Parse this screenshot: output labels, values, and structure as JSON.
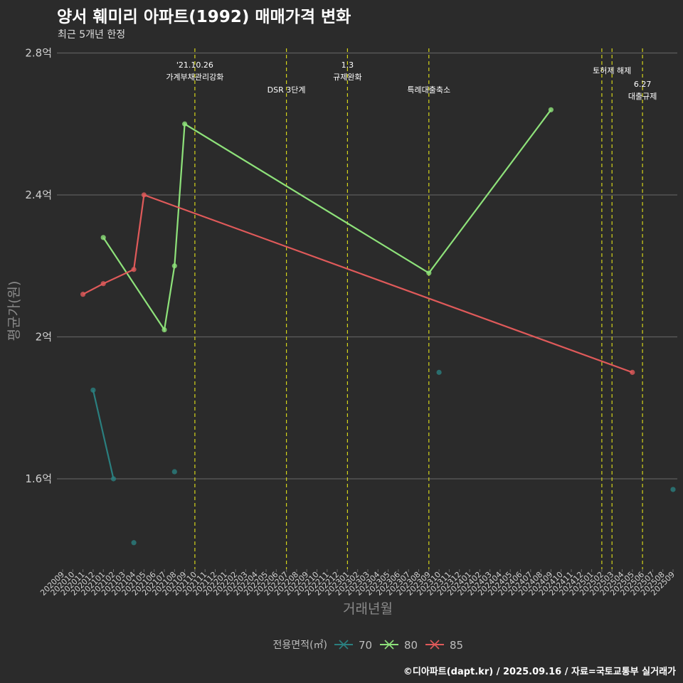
{
  "title": "양서 훼미리 아파트(1992) 매매가격 변화",
  "subtitle": "최근 5개년 한정",
  "caption": "©디아파트(dapt.kr) / 2025.09.16 / 자료=국토교통부 실거래가",
  "chart_data": {
    "type": "line",
    "xlabel": "거래년월",
    "ylabel": "평균가(원)",
    "ylim": [
      1.4,
      2.8
    ],
    "y_ticks": [
      {
        "value": 1.6,
        "label": "1.6억"
      },
      {
        "value": 2.0,
        "label": "2억"
      },
      {
        "value": 2.4,
        "label": "2.4억"
      },
      {
        "value": 2.8,
        "label": "2.8억"
      }
    ],
    "x_categories": [
      "202009",
      "202010",
      "202011",
      "202012",
      "202101",
      "202102",
      "202103",
      "202104",
      "202105",
      "202106",
      "202107",
      "202108",
      "202109",
      "202110",
      "202111",
      "202112",
      "202201",
      "202202",
      "202203",
      "202204",
      "202205",
      "202206",
      "202207",
      "202208",
      "202209",
      "202210",
      "202211",
      "202212",
      "202301",
      "202302",
      "202303",
      "202304",
      "202305",
      "202306",
      "202307",
      "202308",
      "202309",
      "202310",
      "202311",
      "202312",
      "202401",
      "202402",
      "202403",
      "202404",
      "202405",
      "202406",
      "202407",
      "202408",
      "202409",
      "202410",
      "202411",
      "202412",
      "202501",
      "202502",
      "202503",
      "202504",
      "202505",
      "202506",
      "202507",
      "202508",
      "202509"
    ],
    "legend": {
      "title": "전용면적(㎡)",
      "position": "bottom"
    },
    "grid": true,
    "series": [
      {
        "name": "70",
        "color": "#2a7f7f",
        "points": [
          {
            "x": "202012",
            "y": 1.85
          },
          {
            "x": "202102",
            "y": 1.6
          }
        ],
        "isolated": [
          {
            "x": "202104",
            "y": 1.42
          },
          {
            "x": "202108",
            "y": 1.62
          },
          {
            "x": "202310",
            "y": 1.9
          },
          {
            "x": "202509",
            "y": 1.57
          }
        ]
      },
      {
        "name": "80",
        "color": "#8ee27a",
        "points": [
          {
            "x": "202101",
            "y": 2.28
          },
          {
            "x": "202107",
            "y": 2.02
          },
          {
            "x": "202108",
            "y": 2.2
          },
          {
            "x": "202109",
            "y": 2.6
          },
          {
            "x": "202309",
            "y": 2.18
          },
          {
            "x": "202409",
            "y": 2.64
          }
        ],
        "isolated": []
      },
      {
        "name": "85",
        "color": "#e05a5a",
        "points": [
          {
            "x": "202011",
            "y": 2.12
          },
          {
            "x": "202101",
            "y": 2.15
          },
          {
            "x": "202104",
            "y": 2.19
          },
          {
            "x": "202105",
            "y": 2.4
          },
          {
            "x": "202505",
            "y": 1.9
          }
        ],
        "isolated": []
      }
    ],
    "events": [
      {
        "x": "202110",
        "lines": [
          "'21.10.26",
          "가계부채관리강화"
        ],
        "row": 0
      },
      {
        "x": "202207",
        "lines": [
          "DSR 3단계"
        ],
        "row": 1
      },
      {
        "x": "202301",
        "lines": [
          "1.3",
          "규제완화"
        ],
        "row": 0
      },
      {
        "x": "202309",
        "lines": [
          "특례대출축소"
        ],
        "row": 1
      },
      {
        "x": "202502",
        "lines": [],
        "row": 0
      },
      {
        "x": "202503",
        "lines": [
          "토허제 해제"
        ],
        "row": 0
      },
      {
        "x": "202506",
        "lines": [
          "6.27",
          "대출규제"
        ],
        "row": 2
      }
    ]
  }
}
